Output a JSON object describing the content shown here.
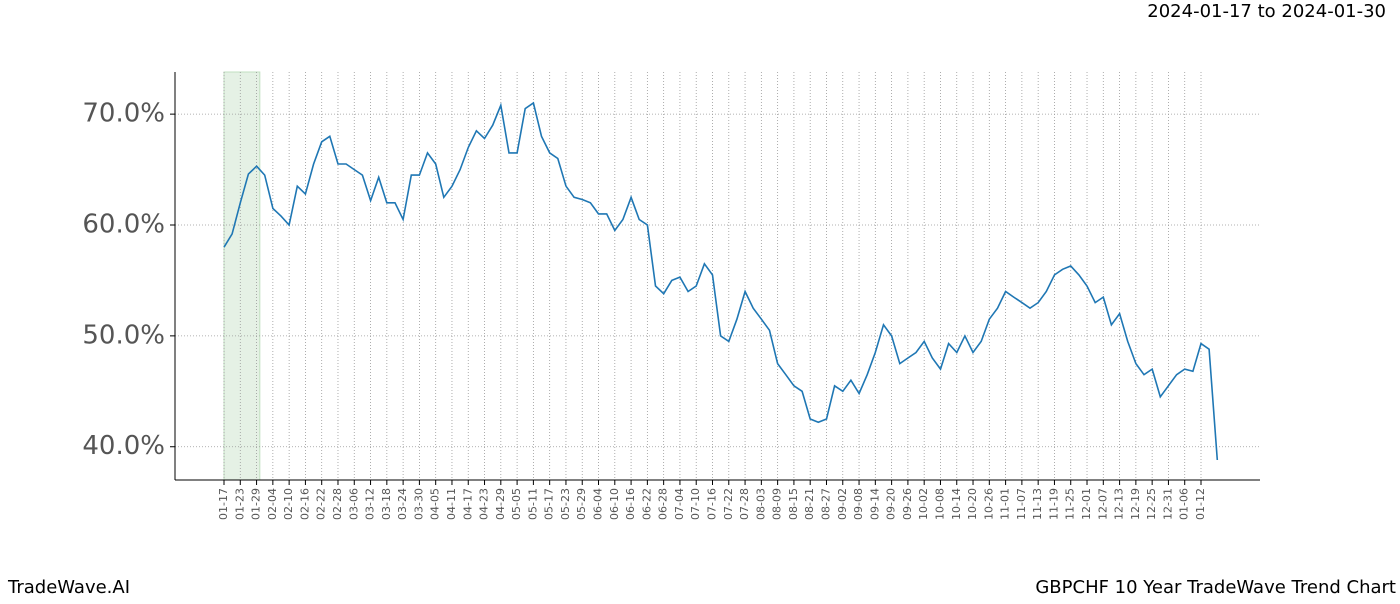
{
  "chart_data": {
    "type": "line",
    "subtitle": "2024-01-17 to 2024-01-30",
    "footer_left": "TradeWave.AI",
    "footer_right": "GBPCHF 10 Year TradeWave Trend Chart",
    "categories": [
      "01-17",
      null,
      "01-23",
      null,
      "01-29",
      null,
      "02-04",
      null,
      "02-10",
      null,
      "02-16",
      null,
      "02-22",
      null,
      "02-28",
      null,
      "03-06",
      null,
      "03-12",
      null,
      "03-18",
      null,
      "03-24",
      null,
      "03-30",
      null,
      "04-05",
      null,
      "04-11",
      null,
      "04-17",
      null,
      "04-23",
      null,
      "04-29",
      null,
      "05-05",
      null,
      "05-11",
      null,
      "05-17",
      null,
      "05-23",
      null,
      "05-29",
      null,
      "06-04",
      null,
      "06-10",
      null,
      "06-16",
      null,
      "06-22",
      null,
      "06-28",
      null,
      "07-04",
      null,
      "07-10",
      null,
      "07-16",
      null,
      "07-22",
      null,
      "07-28",
      null,
      "08-03",
      null,
      "08-09",
      null,
      "08-15",
      null,
      "08-21",
      null,
      "08-27",
      null,
      "09-02",
      null,
      "09-08",
      null,
      "09-14",
      null,
      "09-20",
      null,
      "09-26",
      null,
      "10-02",
      null,
      "10-08",
      null,
      "10-14",
      null,
      "10-20",
      null,
      "10-26",
      null,
      "11-01",
      null,
      "11-07",
      null,
      "11-13",
      null,
      "11-19",
      null,
      "11-25",
      null,
      "12-01",
      null,
      "12-07",
      null,
      "12-13",
      null,
      "12-19",
      null,
      "12-25",
      null,
      "12-31",
      null,
      "01-06",
      null,
      "01-12",
      null,
      null
    ],
    "series": [
      {
        "color": "#1f77b4",
        "values": [
          58.0,
          59.2,
          62.0,
          64.6,
          65.3,
          64.5,
          61.5,
          60.8,
          60.0,
          63.5,
          62.8,
          65.5,
          67.5,
          68.0,
          65.5,
          65.5,
          65.0,
          64.5,
          62.2,
          64.3,
          62.0,
          62.0,
          60.5,
          64.5,
          64.5,
          66.5,
          65.5,
          62.5,
          63.5,
          65.0,
          67.0,
          68.5,
          67.8,
          69.0,
          70.8,
          66.5,
          66.5,
          70.5,
          71.0,
          68.0,
          66.5,
          66.0,
          63.5,
          62.5,
          62.3,
          62.0,
          61.0,
          61.0,
          59.5,
          60.5,
          62.5,
          60.5,
          60.0,
          54.5,
          53.8,
          55.0,
          55.3,
          54.0,
          54.5,
          56.5,
          55.5,
          50.0,
          49.5,
          51.5,
          54.0,
          52.5,
          51.5,
          50.5,
          47.5,
          46.5,
          45.5,
          45.0,
          42.5,
          42.2,
          42.5,
          45.5,
          45.0,
          46.0,
          44.8,
          46.5,
          48.5,
          51.0,
          50.0,
          47.5,
          48.0,
          48.5,
          49.5,
          48.0,
          47.0,
          49.3,
          48.5,
          50.0,
          48.5,
          49.5,
          51.5,
          52.5,
          54.0,
          53.5,
          53.0,
          52.5,
          53.0,
          54.0,
          55.5,
          56.0,
          56.3,
          55.5,
          54.5,
          53.0,
          53.5,
          51.0,
          52.0,
          49.5,
          47.5,
          46.5,
          47.0,
          44.5,
          45.5,
          46.5,
          47.0,
          46.8,
          49.3,
          48.8,
          38.8
        ]
      }
    ],
    "ylim": [
      37.0,
      73.8
    ],
    "yticks": [
      {
        "value": 40,
        "label": "40.0%"
      },
      {
        "value": 50,
        "label": "50.0%"
      },
      {
        "value": 60,
        "label": "60.0%"
      },
      {
        "value": 70,
        "label": "70.0%"
      }
    ],
    "grid": true
  }
}
